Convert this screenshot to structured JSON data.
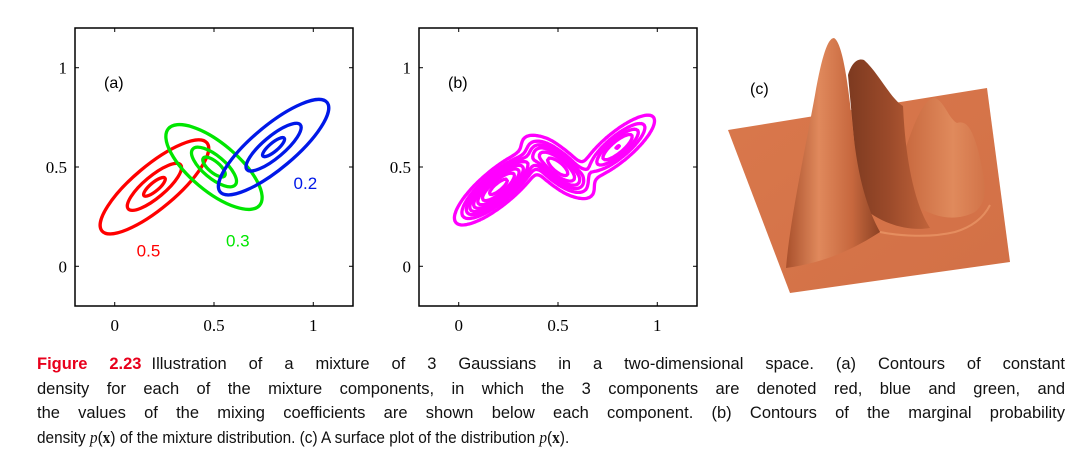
{
  "chart_data": [
    {
      "type": "contour",
      "panel_label": "(a)",
      "title": "Contours of constant density for each mixture component",
      "xlim": [
        -0.2,
        1.2
      ],
      "ylim": [
        -0.2,
        1.2
      ],
      "xticks": [
        "0",
        "0.5",
        "1"
      ],
      "yticks": [
        "0",
        "0.5",
        "1"
      ],
      "xtick_values": [
        0,
        0.5,
        1
      ],
      "ytick_values": [
        0,
        0.5,
        1
      ],
      "components": [
        {
          "name": "red",
          "color": "#ff0000",
          "weight_label": "0.5",
          "weight": 0.5,
          "mean": [
            0.2,
            0.4
          ],
          "angle_deg": 40,
          "sigma_major": 0.115,
          "sigma_minor": 0.036,
          "contour_radii": [
            0.6,
            1.5,
            3
          ]
        },
        {
          "name": "green",
          "color": "#00e600",
          "weight_label": "0.3",
          "weight": 0.3,
          "mean": [
            0.5,
            0.5
          ],
          "angle_deg": -40,
          "sigma_major": 0.1,
          "sigma_minor": 0.04,
          "contour_radii": [
            0.7,
            1.4,
            3
          ]
        },
        {
          "name": "blue",
          "color": "#0018e8",
          "weight_label": "0.2",
          "weight": 0.2,
          "mean": [
            0.8,
            0.6
          ],
          "angle_deg": 40,
          "sigma_major": 0.117,
          "sigma_minor": 0.036,
          "contour_radii": [
            0.6,
            1.5,
            3
          ]
        }
      ]
    },
    {
      "type": "contour",
      "panel_label": "(b)",
      "title": "Contours of the marginal probability density p(x)",
      "xlim": [
        -0.2,
        1.2
      ],
      "ylim": [
        -0.2,
        1.2
      ],
      "xticks": [
        "0",
        "0.5",
        "1"
      ],
      "yticks": [
        "0",
        "0.5",
        "1"
      ],
      "xtick_values": [
        0,
        0.5,
        1
      ],
      "ytick_values": [
        0,
        0.5,
        1
      ],
      "color": "#ff00ff",
      "levels": [
        1.0,
        2.5,
        4.0,
        5.5,
        7.5,
        10,
        13,
        17
      ]
    },
    {
      "type": "surface",
      "panel_label": "(c)",
      "title": "Surface plot of p(x)",
      "color": "#d9794d"
    }
  ],
  "caption": {
    "figure_label": "Figure 2.23",
    "lines": [
      "Illustration of a mixture of 3 Gaussians in a two-dimensional space.  (a) Contours of constant",
      "density for each of the mixture components, in which the 3 components are denoted red, blue and green, and",
      "the values of the mixing coefficients are shown below each component. (b) Contours of the marginal probability"
    ],
    "last_line_parts": [
      "density ",
      "p",
      "(",
      "x",
      ") of the mixture distribution. (c) A surface plot of the distribution ",
      "p",
      "(",
      "x",
      ")."
    ]
  }
}
